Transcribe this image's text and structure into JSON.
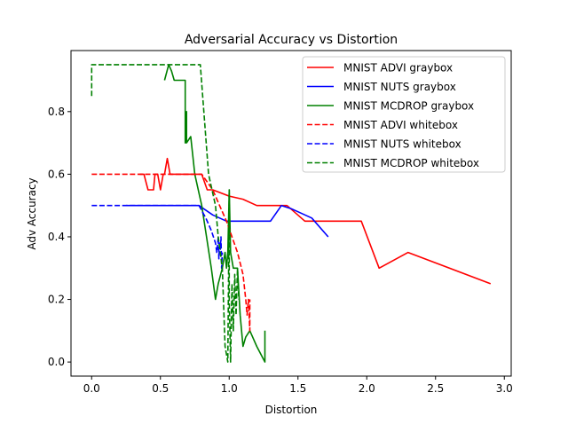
{
  "chart_data": {
    "type": "line",
    "title": "Adversarial Accuracy vs Distortion",
    "xlabel": "Distortion",
    "ylabel": "Adv Accuracy",
    "xlim": [
      -0.15,
      3.05
    ],
    "ylim": [
      -0.045,
      0.995
    ],
    "xticks": [
      "0.0",
      "0.5",
      "1.0",
      "1.5",
      "2.0",
      "2.5",
      "3.0"
    ],
    "yticks": [
      "0.0",
      "0.2",
      "0.4",
      "0.6",
      "0.8"
    ],
    "grid": false,
    "legend_position": "top-right",
    "series": [
      {
        "name": "MNIST ADVI graybox",
        "color": "#ff0000",
        "dash": "solid",
        "x": [
          0.35,
          0.38,
          0.41,
          0.45,
          0.46,
          0.48,
          0.5,
          0.52,
          0.53,
          0.55,
          0.57,
          0.6,
          0.65,
          0.7,
          0.75,
          0.8,
          0.84,
          0.88,
          1.0,
          1.1,
          1.2,
          1.3,
          1.42,
          1.55,
          1.62,
          1.7,
          1.8,
          1.96,
          2.09,
          2.3,
          2.9
        ],
        "y": [
          0.6,
          0.6,
          0.55,
          0.55,
          0.6,
          0.6,
          0.55,
          0.6,
          0.6,
          0.65,
          0.6,
          0.6,
          0.6,
          0.6,
          0.6,
          0.6,
          0.55,
          0.55,
          0.53,
          0.52,
          0.5,
          0.5,
          0.5,
          0.45,
          0.45,
          0.45,
          0.45,
          0.45,
          0.3,
          0.35,
          0.25
        ]
      },
      {
        "name": "MNIST NUTS graybox",
        "color": "#0000ff",
        "dash": "solid",
        "x": [
          0.25,
          0.5,
          0.78,
          0.88,
          0.98,
          1.05,
          1.15,
          1.3,
          1.38,
          1.45,
          1.6,
          1.72
        ],
        "y": [
          0.5,
          0.5,
          0.5,
          0.47,
          0.45,
          0.45,
          0.45,
          0.45,
          0.5,
          0.49,
          0.46,
          0.4
        ]
      },
      {
        "name": "MNIST MCDROP graybox",
        "color": "#008000",
        "dash": "solid",
        "x": [
          0.53,
          0.56,
          0.58,
          0.6,
          0.63,
          0.68,
          0.68,
          0.69,
          0.69,
          0.72,
          0.75,
          0.8,
          0.87,
          0.9,
          0.92,
          0.95,
          0.97,
          0.98,
          0.99,
          1.0,
          1.01,
          1.03,
          1.06,
          1.08,
          1.1,
          1.12,
          1.15,
          1.2,
          1.26,
          1.26
        ],
        "y": [
          0.9,
          0.95,
          0.93,
          0.9,
          0.9,
          0.9,
          0.7,
          0.8,
          0.7,
          0.72,
          0.6,
          0.5,
          0.3,
          0.2,
          0.25,
          0.3,
          0.35,
          0.3,
          0.35,
          0.55,
          0.35,
          0.3,
          0.3,
          0.15,
          0.05,
          0.08,
          0.1,
          0.05,
          0.0,
          0.1
        ]
      },
      {
        "name": "MNIST ADVI whitebox",
        "color": "#ff0000",
        "dash": "dashed",
        "x": [
          0.0,
          0.4,
          0.8,
          0.88,
          0.93,
          0.98,
          1.02,
          1.06,
          1.1,
          1.12,
          1.13,
          1.14,
          1.15,
          1.15
        ],
        "y": [
          0.6,
          0.6,
          0.6,
          0.55,
          0.5,
          0.45,
          0.4,
          0.35,
          0.28,
          0.2,
          0.15,
          0.2,
          0.1,
          0.2
        ]
      },
      {
        "name": "MNIST NUTS whitebox",
        "color": "#0000ff",
        "dash": "dashed",
        "x": [
          0.0,
          0.3,
          0.6,
          0.78,
          0.83,
          0.87,
          0.9,
          0.91,
          0.92,
          0.925,
          0.93,
          0.935,
          0.94,
          0.945,
          0.95
        ],
        "y": [
          0.5,
          0.5,
          0.5,
          0.5,
          0.46,
          0.42,
          0.38,
          0.35,
          0.4,
          0.33,
          0.38,
          0.36,
          0.4,
          0.3,
          0.35
        ]
      },
      {
        "name": "MNIST MCDROP whitebox",
        "color": "#008000",
        "dash": "dashed",
        "x": [
          0.0,
          0.0,
          0.3,
          0.6,
          0.79,
          0.85,
          0.9,
          0.92,
          0.95,
          0.97,
          0.99,
          1.0,
          1.0,
          1.01,
          1.02,
          1.03,
          1.04,
          1.05,
          1.06,
          1.07
        ],
        "y": [
          0.85,
          0.95,
          0.95,
          0.95,
          0.95,
          0.6,
          0.5,
          0.4,
          0.3,
          0.05,
          0.0,
          0.55,
          0.2,
          0.0,
          0.25,
          0.1,
          0.28,
          0.15,
          0.3,
          0.2
        ]
      }
    ]
  }
}
